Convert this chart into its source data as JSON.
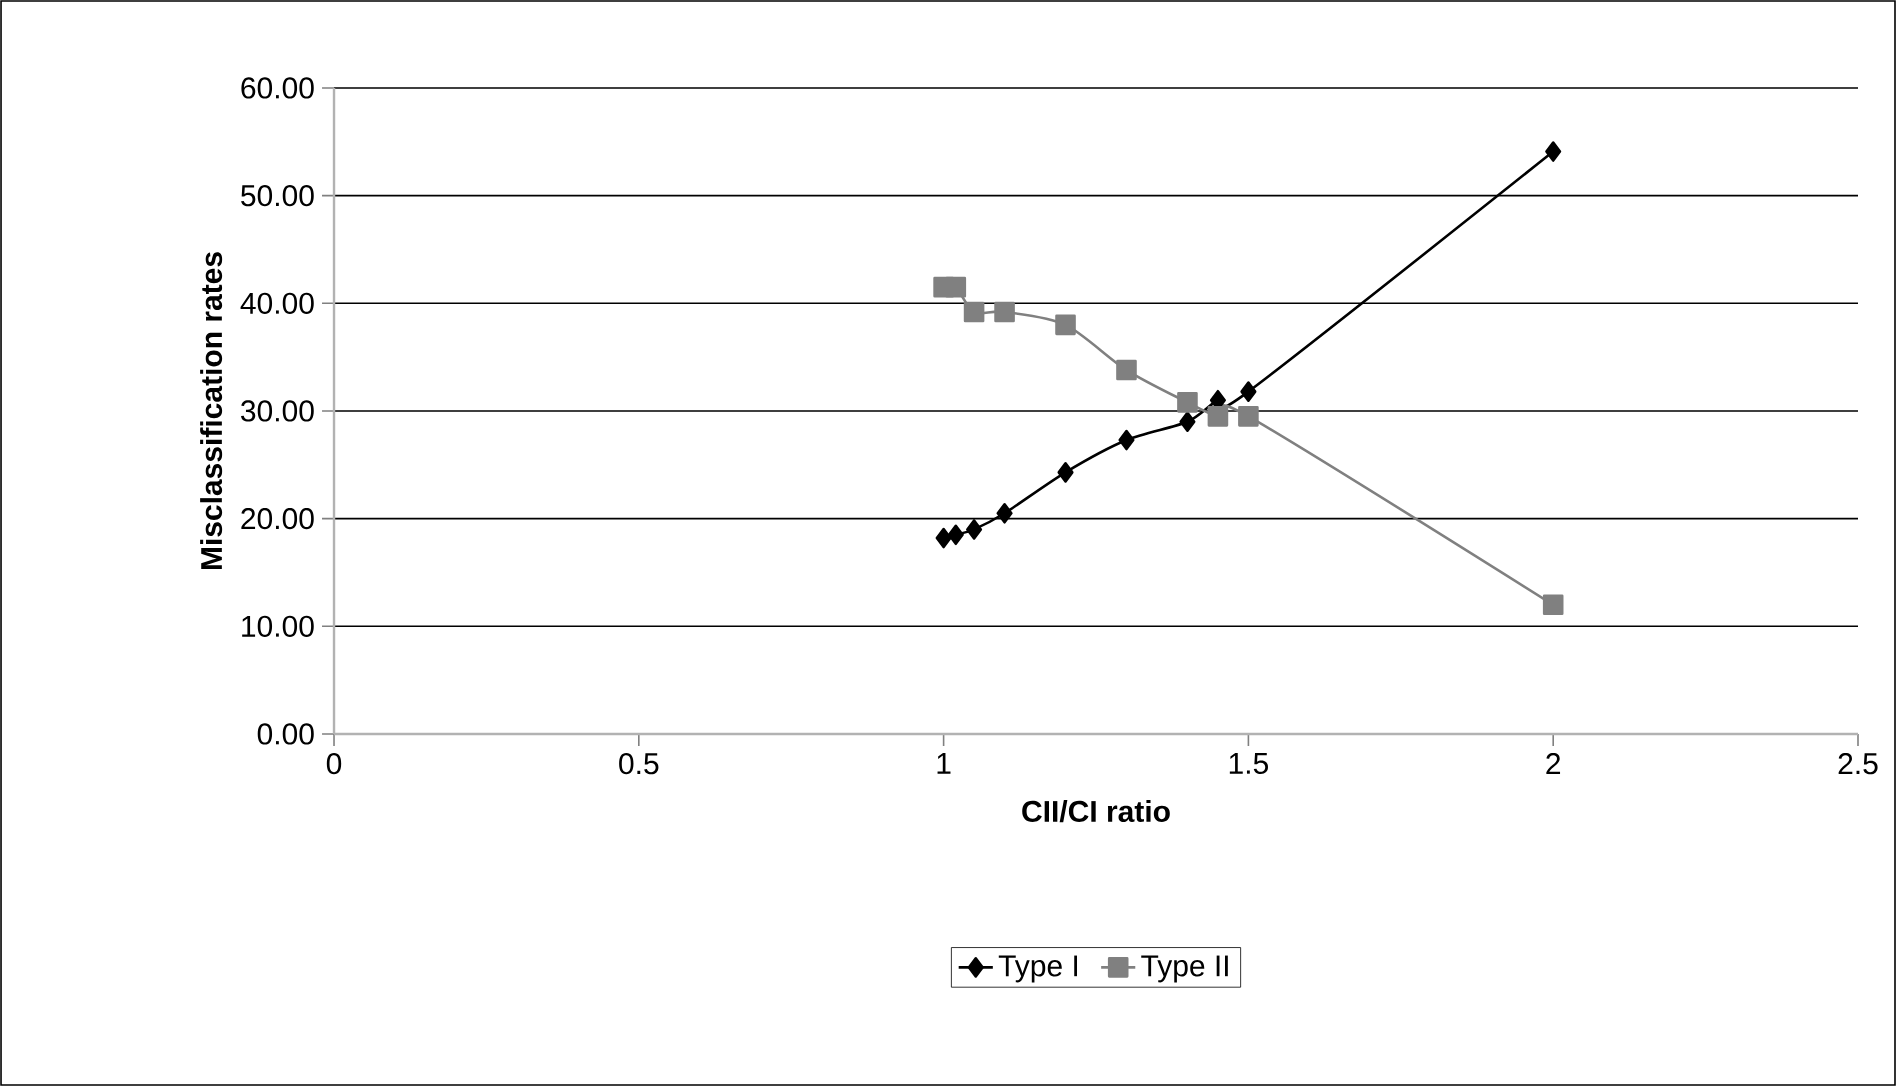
{
  "chart_data": {
    "type": "line",
    "xlabel": "CII/CI ratio",
    "ylabel": "Misclassification rates",
    "xlim": [
      0,
      2.5
    ],
    "xticks": [
      0,
      0.5,
      1,
      1.5,
      2,
      2.5
    ],
    "ylim": [
      0,
      60
    ],
    "yticks": [
      {
        "value": 0,
        "label": "0.00"
      },
      {
        "value": 10,
        "label": "10.00"
      },
      {
        "value": 20,
        "label": "20.00"
      },
      {
        "value": 30,
        "label": "30.00"
      },
      {
        "value": 40,
        "label": "40.00"
      },
      {
        "value": 50,
        "label": "50.00"
      },
      {
        "value": 60,
        "label": "60.00"
      }
    ],
    "grid": "y",
    "legend": "bottom",
    "series": [
      {
        "name": "Type I",
        "color": "#000000",
        "marker": "diamond",
        "x": [
          1.0,
          1.02,
          1.05,
          1.1,
          1.2,
          1.3,
          1.4,
          1.45,
          1.5,
          2.0
        ],
        "values": [
          18.2,
          18.5,
          19.0,
          20.5,
          24.3,
          27.3,
          29.0,
          31.0,
          31.8,
          54.1
        ]
      },
      {
        "name": "Type II",
        "color": "#808080",
        "marker": "square",
        "x": [
          1.0,
          1.02,
          1.05,
          1.1,
          1.2,
          1.3,
          1.4,
          1.45,
          1.5,
          2.0
        ],
        "values": [
          41.5,
          41.5,
          39.2,
          39.2,
          38.0,
          33.8,
          30.8,
          29.5,
          29.5,
          12.0
        ]
      }
    ]
  }
}
